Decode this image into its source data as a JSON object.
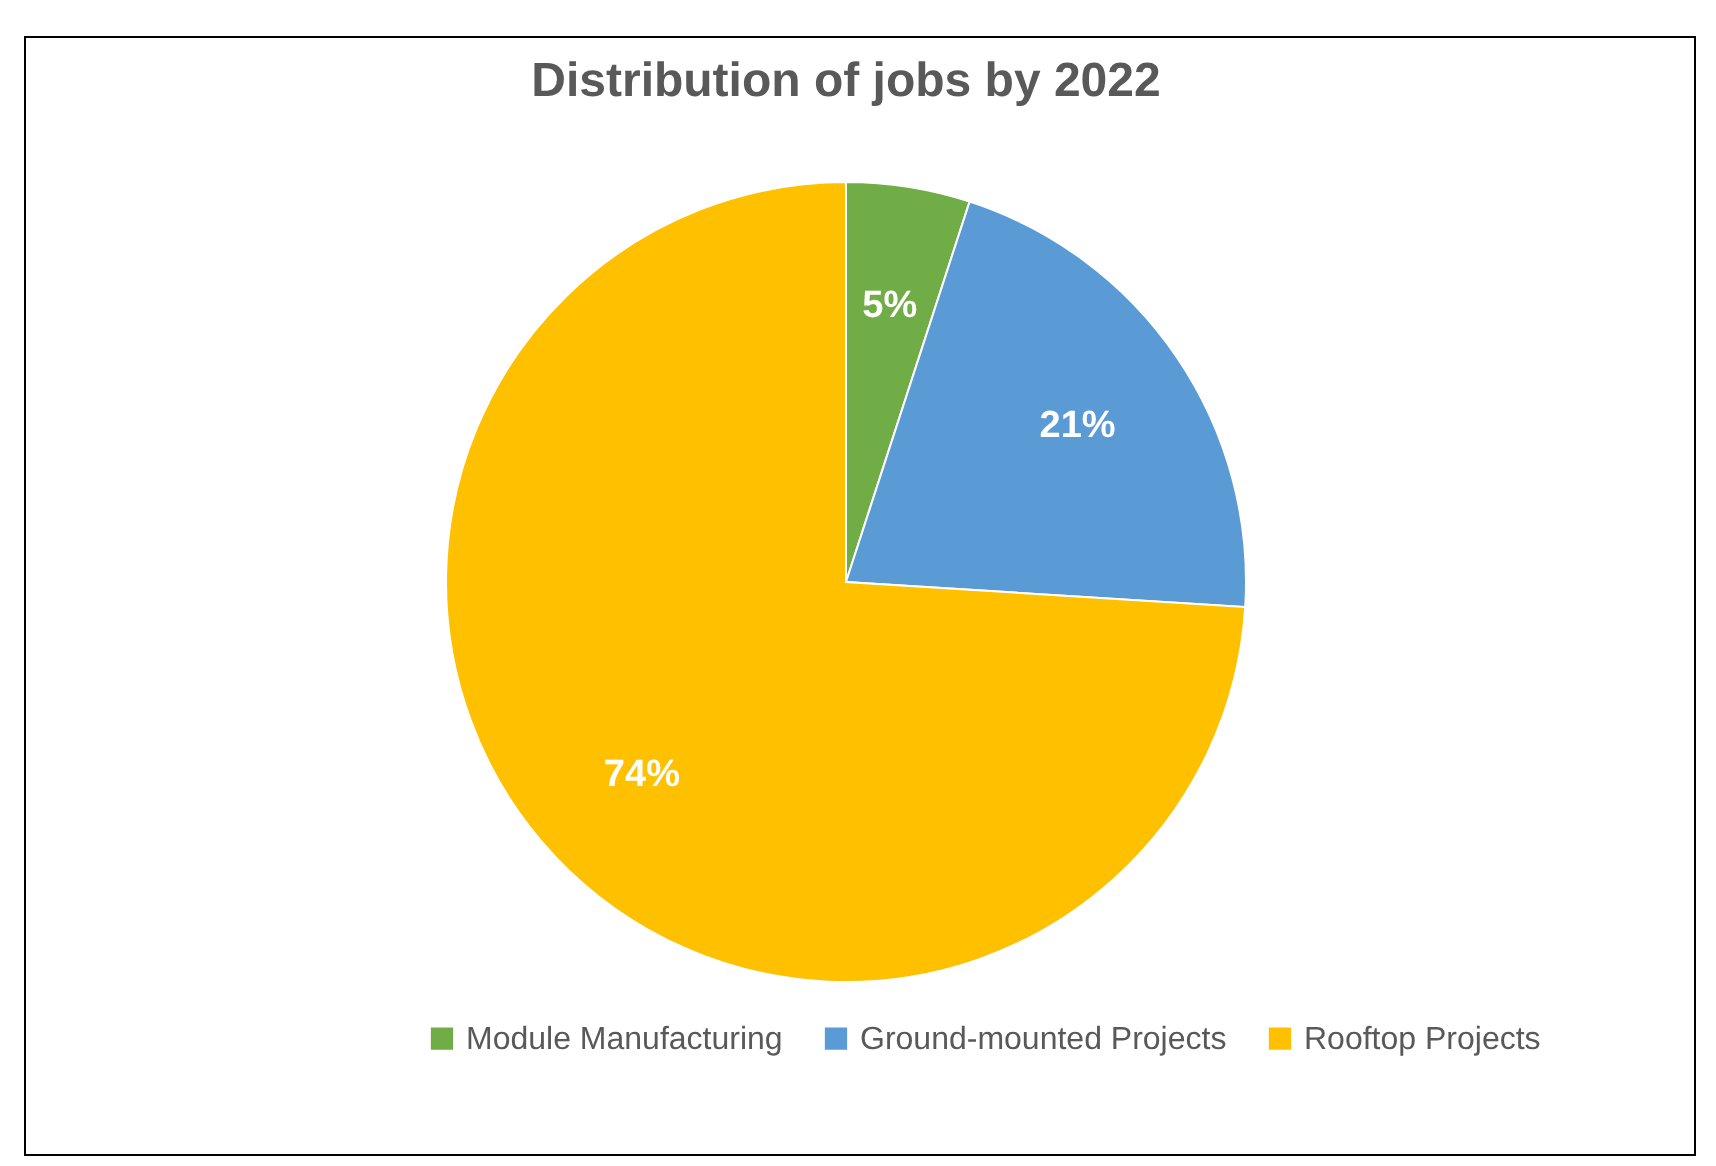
{
  "chart_data": {
    "type": "pie",
    "title": "Distribution of jobs by 2022",
    "categories": [
      "Module Manufacturing",
      "Ground-mounted Projects",
      "Rooftop Projects"
    ],
    "values": [
      5,
      21,
      74
    ],
    "colors": [
      "#70ad47",
      "#5b9bd5",
      "#ffc000"
    ],
    "value_labels": [
      "5%",
      "21%",
      "74%"
    ],
    "legend": "bottom"
  }
}
